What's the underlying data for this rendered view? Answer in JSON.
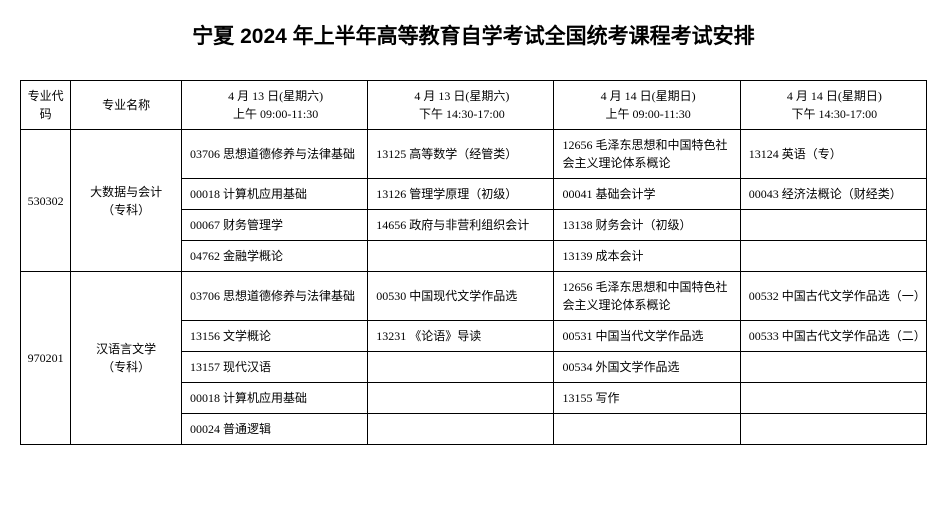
{
  "title": "宁夏 2024 年上半年高等教育自学考试全国统考课程考试安排",
  "headers": {
    "code": "专业代码",
    "name": "专业名称",
    "slot1_line1": "4 月 13 日(星期六)",
    "slot1_line2": "上午 09:00-11:30",
    "slot2_line1": "4 月 13 日(星期六)",
    "slot2_line2": "下午 14:30-17:00",
    "slot3_line1": "4 月 14 日(星期日)",
    "slot3_line2": "上午 09:00-11:30",
    "slot4_line1": "4 月 14 日(星期日)",
    "slot4_line2": "下午 14:30-17:00"
  },
  "majors": [
    {
      "code": "530302",
      "name_line1": "大数据与会计",
      "name_line2": "（专科）",
      "rows": [
        {
          "s1": "03706 思想道德修养与法律基础",
          "s2": "13125 高等数学（经管类）",
          "s3": "12656 毛泽东思想和中国特色社会主义理论体系概论",
          "s4": "13124 英语（专）"
        },
        {
          "s1": "00018 计算机应用基础",
          "s2": "13126 管理学原理（初级）",
          "s3": "00041 基础会计学",
          "s4": "00043 经济法概论（财经类）"
        },
        {
          "s1": "00067 财务管理学",
          "s2": "14656 政府与非营利组织会计",
          "s3": "13138 财务会计（初级）",
          "s4": ""
        },
        {
          "s1": "04762 金融学概论",
          "s2": "",
          "s3": "13139 成本会计",
          "s4": ""
        }
      ]
    },
    {
      "code": "970201",
      "name_line1": "汉语言文学",
      "name_line2": "（专科）",
      "rows": [
        {
          "s1": "03706 思想道德修养与法律基础",
          "s2": "00530 中国现代文学作品选",
          "s3": "12656 毛泽东思想和中国特色社会主义理论体系概论",
          "s4": "00532 中国古代文学作品选（一）"
        },
        {
          "s1": "13156 文学概论",
          "s2": "13231 《论语》导读",
          "s3": "00531 中国当代文学作品选",
          "s4": "00533 中国古代文学作品选（二）"
        },
        {
          "s1": "13157 现代汉语",
          "s2": "",
          "s3": "00534 外国文学作品选",
          "s4": ""
        },
        {
          "s1": "00018 计算机应用基础",
          "s2": "",
          "s3": "13155 写作",
          "s4": ""
        },
        {
          "s1": "00024 普通逻辑",
          "s2": "",
          "s3": "",
          "s4": ""
        }
      ]
    }
  ],
  "styling": {
    "border_color": "#000000",
    "text_color": "#000000",
    "background_color": "#ffffff",
    "title_fontsize": 21,
    "cell_fontsize": 12,
    "title_fontfamily": "SimHei",
    "body_fontfamily": "SimSun"
  }
}
